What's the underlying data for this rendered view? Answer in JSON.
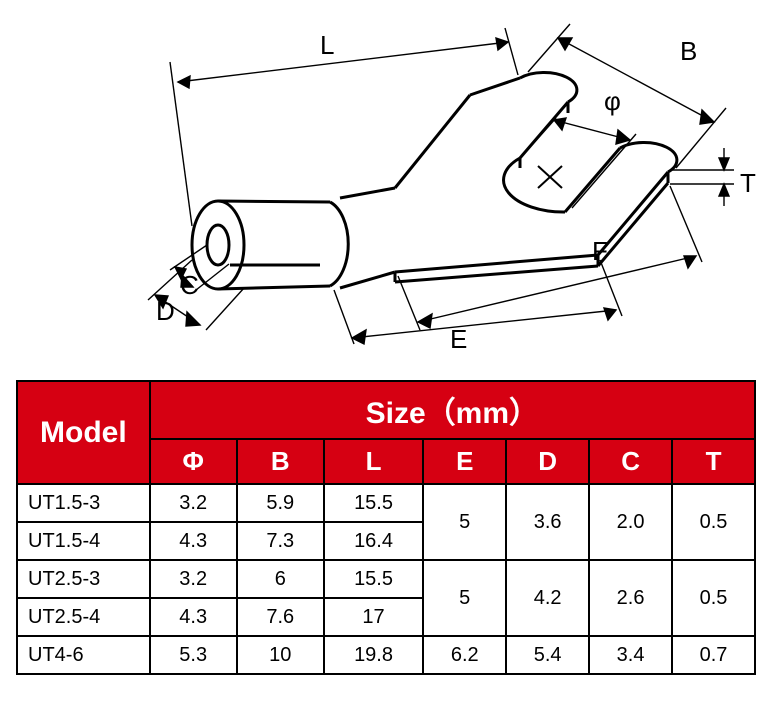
{
  "diagram": {
    "type": "technical-drawing",
    "line_color": "#000000",
    "line_width": 3,
    "thin_line_width": 1.4,
    "labels": {
      "L": "L",
      "B": "B",
      "phi": "φ",
      "T": "T",
      "F": "F",
      "E": "E",
      "C": "C",
      "D": "D"
    },
    "label_fontsize": 26,
    "label_color": "#000000"
  },
  "table": {
    "header_bg": "#d60012",
    "header_fg": "#ffffff",
    "border_color": "#000000",
    "model_header": "Model",
    "size_header": "Size（mm）",
    "columns": [
      "Φ",
      "B",
      "L",
      "E",
      "D",
      "C",
      "T"
    ],
    "col_widths_pct": [
      16,
      10.5,
      10.5,
      12,
      10,
      10,
      10,
      10,
      11
    ],
    "rows": [
      {
        "model": "UT1.5-3",
        "phi": "3.2",
        "B": "5.9",
        "L": "15.5"
      },
      {
        "model": "UT1.5-4",
        "phi": "4.3",
        "B": "7.3",
        "L": "16.4"
      },
      {
        "model": "UT2.5-3",
        "phi": "3.2",
        "B": "6",
        "L": "15.5"
      },
      {
        "model": "UT2.5-4",
        "phi": "4.3",
        "B": "7.6",
        "L": "17"
      },
      {
        "model": "UT4-6",
        "phi": "5.3",
        "B": "10",
        "L": "19.8",
        "E": "6.2",
        "D": "5.4",
        "C": "3.4",
        "T": "0.7"
      }
    ],
    "merged_groups": [
      {
        "rowspan": 2,
        "E": "5",
        "D": "3.6",
        "C": "2.0",
        "T": "0.5"
      },
      {
        "rowspan": 2,
        "E": "5",
        "D": "4.2",
        "C": "2.6",
        "T": "0.5"
      }
    ]
  }
}
